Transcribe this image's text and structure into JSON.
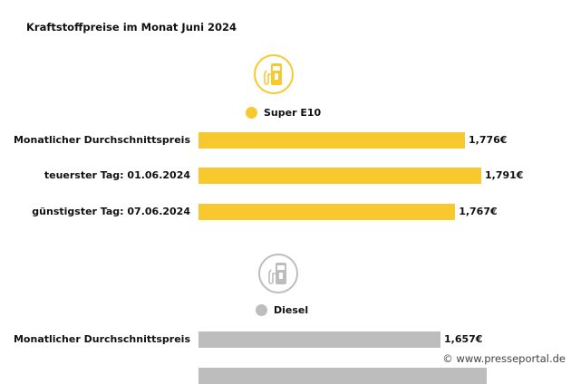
{
  "title": "Kraftstoffpreise im Monat Juni 2024",
  "watermark": "© www.presseportal.de",
  "chart_data": [
    {
      "type": "bar",
      "orientation": "horizontal",
      "series_name": "Super E10",
      "color": "#f7c92e",
      "icon": "fuel-pump-icon",
      "categories": [
        "Monatlicher Durchschnittspreis",
        "teuerster Tag: 01.06.2024",
        "günstigster Tag: 07.06.2024"
      ],
      "values": [
        1.776,
        1.791,
        1.767
      ],
      "value_labels": [
        "1,776€",
        "1,791€",
        "1,767€"
      ]
    },
    {
      "type": "bar",
      "orientation": "horizontal",
      "series_name": "Diesel",
      "color": "#bdbdbd",
      "icon": "fuel-pump-icon",
      "categories": [
        "Monatlicher Durchschnittspreis"
      ],
      "values": [
        1.657
      ],
      "value_labels": [
        "1,657€"
      ]
    }
  ]
}
